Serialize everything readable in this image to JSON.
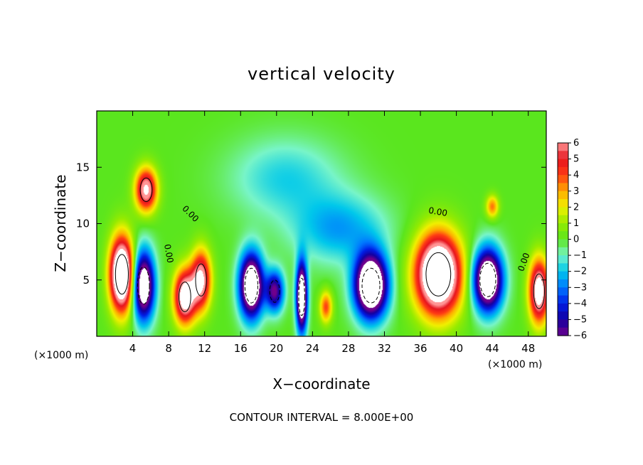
{
  "chart_data": {
    "type": "heatmap",
    "title": "vertical velocity",
    "xlabel": "X−coordinate",
    "ylabel": "Z−coordinate",
    "x_unit_left": "(×1000 m)",
    "x_unit_right": "(×1000 m)",
    "xlim": [
      0,
      50
    ],
    "ylim": [
      0,
      20
    ],
    "x_ticks": [
      4,
      8,
      12,
      16,
      20,
      24,
      28,
      32,
      36,
      40,
      44,
      48
    ],
    "x_tick_labels": [
      "4",
      "8",
      "12",
      "16",
      "20",
      "24",
      "28",
      "32",
      "36",
      "40",
      "44",
      "48"
    ],
    "y_ticks": [
      5,
      10,
      15
    ],
    "y_tick_labels": [
      "5",
      "10",
      "15"
    ],
    "colorbar": {
      "min": -6,
      "max": 6,
      "ticks": [
        6,
        5,
        4,
        3,
        2,
        1,
        0,
        -1,
        -2,
        -3,
        -4,
        -5,
        -6
      ],
      "tick_labels": [
        "6",
        "5",
        "4",
        "3",
        "2",
        "1",
        "0",
        "−1",
        "−2",
        "−3",
        "−4",
        "−5",
        "−6"
      ]
    },
    "contour_interval_label": "CONTOUR INTERVAL = 8.000E+00",
    "zero_contour_label": "0.00",
    "cells": [
      {
        "x": 2.8,
        "z": 5.5,
        "sx": 1.3,
        "sz": 3.2,
        "w": 11
      },
      {
        "x": 5.5,
        "z": 13.0,
        "sx": 1.2,
        "sz": 1.9,
        "w": 7
      },
      {
        "x": 5.2,
        "z": 4.5,
        "sx": 1.2,
        "sz": 3.0,
        "w": -9
      },
      {
        "x": 9.8,
        "z": 3.5,
        "sx": 1.2,
        "sz": 2.4,
        "w": 8
      },
      {
        "x": 11.6,
        "z": 5.0,
        "sx": 1.1,
        "sz": 2.6,
        "w": 7
      },
      {
        "x": 17.2,
        "z": 4.5,
        "sx": 1.3,
        "sz": 2.8,
        "w": -10
      },
      {
        "x": 19.8,
        "z": 4.0,
        "sx": 1.0,
        "sz": 1.8,
        "w": -6
      },
      {
        "x": 22.8,
        "z": 3.5,
        "sx": 0.6,
        "sz": 3.0,
        "w": -10
      },
      {
        "x": 25.5,
        "z": 2.6,
        "sx": 0.7,
        "sz": 1.4,
        "w": 4
      },
      {
        "x": 30.5,
        "z": 4.5,
        "sx": 1.8,
        "sz": 2.8,
        "w": -11
      },
      {
        "x": 38.0,
        "z": 5.5,
        "sx": 2.5,
        "sz": 3.5,
        "w": 11
      },
      {
        "x": 43.5,
        "z": 5.0,
        "sx": 1.6,
        "sz": 2.7,
        "w": -10
      },
      {
        "x": 49.2,
        "z": 4.0,
        "sx": 1.1,
        "sz": 2.8,
        "w": 8
      },
      {
        "x": 44.0,
        "z": 11.5,
        "sx": 0.7,
        "sz": 1.0,
        "w": 3.5
      },
      {
        "x": 21.0,
        "z": 14.0,
        "sx": 6.0,
        "sz": 3.5,
        "w": -1.8
      },
      {
        "x": 27.0,
        "z": 9.5,
        "sx": 5.0,
        "sz": 3.0,
        "w": -2.5
      }
    ]
  }
}
